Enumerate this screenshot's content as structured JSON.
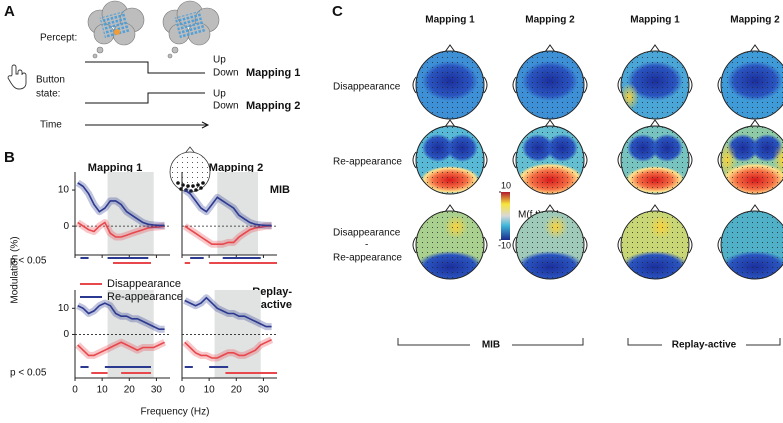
{
  "panel_a": {
    "label": "A",
    "percept": "Percept:",
    "button": "Button",
    "state": "state:",
    "up": "Up",
    "down": "Down",
    "mapping_1": "Mapping 1",
    "mapping_2": "Mapping 2",
    "time": "Time"
  },
  "panel_b": {
    "label": "B",
    "columns": [
      "Mapping 1",
      "Mapping 2"
    ],
    "rows": [
      "MIB",
      "Replay-",
      "active"
    ],
    "ylabel": "Modulation (%)",
    "xlabel": "Frequency (Hz)",
    "significance_label": "p < 0.05"
  },
  "chart_data": [
    {
      "type": "line",
      "x": [
        1,
        3,
        5,
        7,
        9,
        11,
        13,
        15,
        17,
        19,
        21,
        23,
        25,
        27,
        29,
        31,
        33
      ],
      "xlim": [
        0,
        35
      ],
      "ylim": [
        -8,
        15
      ],
      "xticks": [
        0,
        10,
        20,
        30
      ],
      "yticks": [
        0,
        10
      ],
      "zero_line": true,
      "shade": [
        12,
        29
      ],
      "series": [
        {
          "color": "#e8474c",
          "values": [
            1,
            0,
            -1,
            -1.5,
            0,
            1,
            -2,
            -3,
            -3,
            -2.5,
            -2,
            -1.5,
            -1,
            -0.5,
            -0.3,
            -0.2,
            0
          ],
          "significance": [
            [
              14,
              28
            ]
          ]
        },
        {
          "color": "#2b3990",
          "values": [
            12,
            11,
            9,
            6,
            4,
            5,
            7,
            7,
            6,
            4,
            3,
            2,
            1,
            0.5,
            0.3,
            0.2,
            0.2
          ],
          "significance": [
            [
              2,
              5
            ],
            [
              12,
              27
            ]
          ]
        }
      ]
    },
    {
      "type": "line",
      "x": [
        1,
        3,
        5,
        7,
        9,
        11,
        13,
        15,
        17,
        19,
        21,
        23,
        25,
        27,
        29,
        31,
        33
      ],
      "xlim": [
        0,
        35
      ],
      "ylim": [
        -8,
        15
      ],
      "xticks": [
        0,
        10,
        20,
        30
      ],
      "zero_line": true,
      "shade": [
        13,
        28
      ],
      "series": [
        {
          "color": "#e8474c",
          "values": [
            0,
            -1,
            -2,
            -3,
            -4,
            -5,
            -5,
            -5,
            -4.5,
            -4.5,
            -3,
            -2,
            -1,
            -0.5,
            -0.3,
            0,
            0
          ],
          "significance": [
            [
              1,
              3
            ],
            [
              10,
              35
            ]
          ]
        },
        {
          "color": "#2b3990",
          "values": [
            10,
            9,
            7,
            5,
            4,
            6,
            8,
            7,
            6,
            5,
            3,
            2,
            1,
            0.5,
            0.3,
            0.2,
            0.2
          ],
          "significance": [
            [
              3,
              8
            ],
            [
              15,
              29
            ]
          ]
        }
      ]
    },
    {
      "type": "line",
      "x": [
        1,
        3,
        5,
        7,
        9,
        11,
        13,
        15,
        17,
        19,
        21,
        23,
        25,
        27,
        29,
        31,
        33
      ],
      "xlim": [
        0,
        35
      ],
      "ylim": [
        -9,
        17
      ],
      "xticks": [
        0,
        10,
        20,
        30
      ],
      "yticks": [
        0,
        10
      ],
      "zero_line": true,
      "shade": [
        12,
        29
      ],
      "series": [
        {
          "name": "Disappearance",
          "color": "#e8474c",
          "values": [
            -4,
            -6,
            -8,
            -8,
            -7,
            -6,
            -5,
            -4,
            -3,
            -4,
            -5,
            -6,
            -5,
            -5,
            -5,
            -4,
            -3
          ],
          "significance": [
            [
              6,
              12
            ],
            [
              17,
              28
            ]
          ]
        },
        {
          "name": "Re-appearance",
          "color": "#2b3990",
          "values": [
            11,
            10,
            8,
            9,
            11,
            12,
            11,
            8,
            7,
            7,
            6,
            6,
            5,
            4,
            3,
            2,
            2
          ],
          "significance": [
            [
              2,
              5
            ],
            [
              11,
              28
            ]
          ]
        }
      ]
    },
    {
      "type": "line",
      "x": [
        1,
        3,
        5,
        7,
        9,
        11,
        13,
        15,
        17,
        19,
        21,
        23,
        25,
        27,
        29,
        31,
        33
      ],
      "xlim": [
        0,
        35
      ],
      "ylim": [
        -9,
        17
      ],
      "xticks": [
        0,
        10,
        20,
        30
      ],
      "zero_line": true,
      "shade": [
        12,
        29
      ],
      "series": [
        {
          "color": "#e8474c",
          "values": [
            -3,
            -5,
            -7,
            -8,
            -8,
            -9,
            -9,
            -8,
            -7,
            -7,
            -8,
            -8,
            -7,
            -6,
            -4,
            -3,
            -2
          ],
          "significance": [
            [
              16,
              35
            ]
          ]
        },
        {
          "color": "#2b3990",
          "values": [
            13,
            12,
            11,
            12,
            14,
            12,
            10,
            9,
            8,
            8,
            7,
            7,
            6,
            5,
            4,
            3,
            3
          ],
          "significance": [
            [
              1,
              4
            ],
            [
              10,
              17
            ]
          ]
        }
      ]
    }
  ],
  "panel_c": {
    "label": "C",
    "columns": [
      "Mapping 1",
      "Mapping 2",
      "Mapping 1",
      "Mapping 2"
    ],
    "rows": [
      "Disappearance",
      "Re-appearance",
      "Disappearance",
      "-",
      "Re-appearance"
    ],
    "colorbar": {
      "label": "M(f,t) (%)",
      "ticks": [
        10,
        -10
      ],
      "lim": [
        -10,
        10
      ]
    },
    "groups": [
      "MIB",
      "Replay-active"
    ]
  }
}
